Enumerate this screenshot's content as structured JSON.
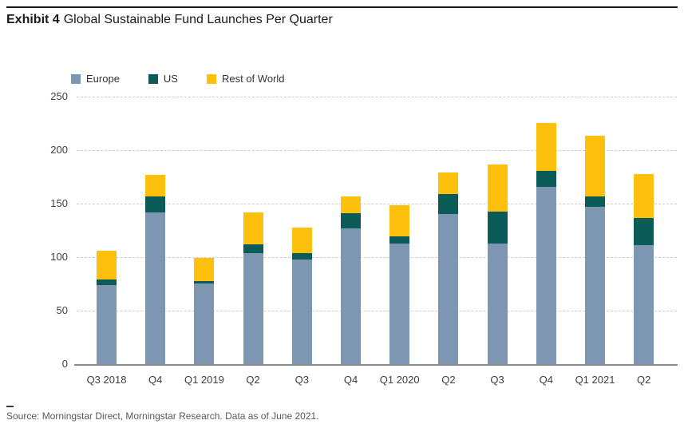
{
  "header": {
    "title_prefix": "Exhibit 4",
    "title_rest": "Global Sustainable Fund Launches Per Quarter"
  },
  "footer": {
    "source": "Source: Morningstar Direct, Morningstar Research. Data as of June 2021."
  },
  "colors": {
    "europe": "#7D96B2",
    "us": "#0B5C58",
    "rest_of_world": "#FDC10D",
    "gridline": "#CDCDCD",
    "axis": "#8A8A8A",
    "axis_text": "#404040"
  },
  "chart_data": {
    "type": "bar",
    "subtype": "stacked-vertical",
    "title": "Exhibit 4 Global Sustainable Fund Launches Per Quarter",
    "xlabel": "",
    "ylabel": "",
    "ylim": [
      0,
      250
    ],
    "yticks": [
      0,
      50,
      100,
      150,
      200,
      250
    ],
    "grid": "horizontal-dashed",
    "legend_position": "top-left",
    "categories": [
      "Q3 2018",
      "Q4",
      "Q1 2019",
      "Q2",
      "Q3",
      "Q4",
      "Q1 2020",
      "Q2",
      "Q3",
      "Q4",
      "Q1 2021",
      "Q2"
    ],
    "series": [
      {
        "name": "Europe",
        "color": "#7D96B2",
        "values": [
          74,
          142,
          75,
          104,
          98,
          127,
          113,
          140,
          113,
          166,
          147,
          111
        ]
      },
      {
        "name": "US",
        "color": "#0B5C58",
        "values": [
          5,
          15,
          2,
          8,
          6,
          14,
          7,
          19,
          30,
          15,
          10,
          25
        ]
      },
      {
        "name": "Rest of World",
        "color": "#FDC10D",
        "values": [
          27,
          20,
          22,
          30,
          24,
          16,
          29,
          20,
          44,
          45,
          57,
          41
        ]
      }
    ],
    "totals": [
      106,
      177,
      99,
      142,
      128,
      157,
      149,
      179,
      187,
      226,
      214,
      177
    ]
  }
}
